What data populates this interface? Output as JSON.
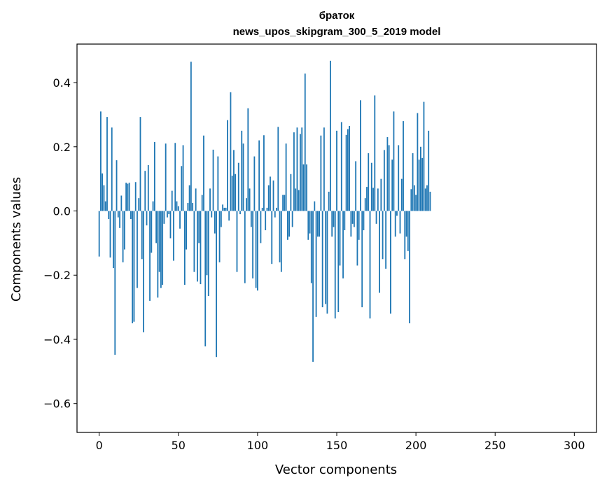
{
  "chart_data": {
    "type": "bar",
    "title": "браток",
    "subtitle": "news_upos_skipgram_300_5_2019 model",
    "xlabel": "Vector components",
    "ylabel": "Components values",
    "xlim": [
      -14,
      314
    ],
    "ylim": [
      -0.69,
      0.52
    ],
    "xticks": [
      0,
      50,
      100,
      150,
      200,
      250,
      300
    ],
    "yticks": [
      -0.6,
      -0.4,
      -0.2,
      0.0,
      0.2,
      0.4
    ],
    "ytick_labels": [
      "−0.6",
      "−0.4",
      "−0.2",
      "0.0",
      "0.2",
      "0.4"
    ],
    "grid": false,
    "bar_color": "#1f77b4",
    "x_start": 0,
    "values": [
      -0.142,
      0.31,
      0.117,
      0.08,
      0.03,
      0.293,
      -0.025,
      -0.145,
      0.26,
      -0.178,
      -0.448,
      0.158,
      -0.02,
      -0.053,
      0.048,
      -0.16,
      -0.12,
      0.088,
      0.085,
      0.088,
      -0.025,
      -0.35,
      -0.345,
      0.09,
      -0.24,
      0.04,
      0.293,
      -0.15,
      -0.378,
      0.125,
      -0.045,
      0.143,
      -0.28,
      -0.13,
      0.03,
      0.215,
      -0.1,
      -0.27,
      -0.19,
      -0.24,
      -0.23,
      -0.04,
      0.21,
      -0.02,
      -0.01,
      -0.085,
      0.063,
      -0.155,
      0.212,
      0.03,
      0.015,
      -0.055,
      0.14,
      0.205,
      -0.23,
      -0.12,
      0.025,
      0.08,
      0.465,
      0.025,
      -0.19,
      0.07,
      -0.22,
      -0.1,
      -0.228,
      0.05,
      0.235,
      -0.422,
      -0.2,
      -0.265,
      0.07,
      -0.02,
      0.191,
      -0.07,
      -0.455,
      0.17,
      -0.16,
      -0.05,
      0.02,
      0.01,
      0.01,
      0.283,
      -0.03,
      0.37,
      0.11,
      0.19,
      0.115,
      -0.19,
      0.15,
      -0.01,
      0.25,
      0.21,
      -0.225,
      0.04,
      0.32,
      0.07,
      -0.05,
      -0.21,
      0.17,
      -0.24,
      -0.248,
      0.22,
      -0.1,
      0.01,
      0.236,
      -0.06,
      0.01,
      0.08,
      0.107,
      -0.165,
      0.095,
      -0.02,
      0.01,
      0.262,
      -0.16,
      -0.19,
      0.05,
      0.05,
      0.21,
      -0.09,
      -0.08,
      0.115,
      -0.05,
      0.245,
      0.07,
      0.26,
      0.065,
      0.24,
      0.26,
      0.145,
      0.428,
      0.145,
      -0.09,
      -0.07,
      -0.225,
      -0.47,
      0.03,
      -0.33,
      -0.08,
      -0.08,
      0.235,
      -0.3,
      0.26,
      -0.29,
      -0.32,
      0.06,
      0.468,
      -0.08,
      -0.05,
      -0.335,
      0.25,
      -0.315,
      -0.17,
      0.277,
      -0.21,
      -0.06,
      0.237,
      0.255,
      0.265,
      -0.08,
      -0.04,
      -0.05,
      0.155,
      -0.17,
      -0.09,
      0.345,
      -0.3,
      -0.06,
      0.04,
      0.075,
      0.18,
      -0.335,
      0.15,
      0.072,
      0.36,
      -0.04,
      0.07,
      -0.255,
      0.1,
      -0.15,
      0.19,
      -0.18,
      0.23,
      0.205,
      -0.32,
      0.16,
      0.31,
      -0.08,
      -0.015,
      0.205,
      -0.07,
      0.1,
      0.28,
      -0.15,
      -0.08,
      -0.125,
      -0.35,
      0.068,
      0.18,
      0.08,
      0.05,
      0.305,
      0.16,
      0.2,
      0.165,
      0.34,
      0.07,
      0.08,
      0.25,
      0.06
    ]
  }
}
